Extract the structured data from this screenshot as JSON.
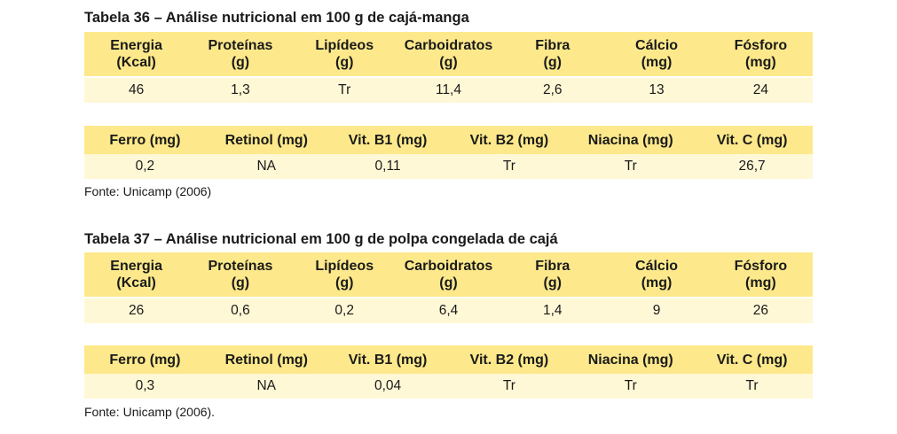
{
  "tables": [
    {
      "title": "Tabela 36 – Análise nutricional em 100 g de cajá-manga",
      "row1_headers": [
        [
          "Energia",
          "(Kcal)"
        ],
        [
          "Proteínas",
          "(g)"
        ],
        [
          "Lipídeos",
          "(g)"
        ],
        [
          "Carboidratos",
          "(g)"
        ],
        [
          "Fibra",
          "(g)"
        ],
        [
          "Cálcio",
          "(mg)"
        ],
        [
          "Fósforo",
          "(mg)"
        ]
      ],
      "row1_values": [
        "46",
        "1,3",
        "Tr",
        "11,4",
        "2,6",
        "13",
        "24"
      ],
      "row2_headers": [
        "Ferro (mg)",
        "Retinol (mg)",
        "Vit. B1 (mg)",
        "Vit. B2 (mg)",
        "Niacina (mg)",
        "Vit. C (mg)"
      ],
      "row2_values": [
        "0,2",
        "NA",
        "0,11",
        "Tr",
        "Tr",
        "26,7"
      ],
      "source": "Fonte: Unicamp (2006)"
    },
    {
      "title": "Tabela 37 – Análise nutricional em 100 g de polpa congelada de cajá",
      "row1_headers": [
        [
          "Energia",
          "(Kcal)"
        ],
        [
          "Proteínas",
          "(g)"
        ],
        [
          "Lipídeos",
          "(g)"
        ],
        [
          "Carboidratos",
          "(g)"
        ],
        [
          "Fibra",
          "(g)"
        ],
        [
          "Cálcio",
          "(mg)"
        ],
        [
          "Fósforo",
          "(mg)"
        ]
      ],
      "row1_values": [
        "26",
        "0,6",
        "0,2",
        "6,4",
        "1,4",
        "9",
        "26"
      ],
      "row2_headers": [
        "Ferro (mg)",
        "Retinol (mg)",
        "Vit. B1 (mg)",
        "Vit. B2 (mg)",
        "Niacina (mg)",
        "Vit. C (mg)"
      ],
      "row2_values": [
        "0,3",
        "NA",
        "0,04",
        "Tr",
        "Tr",
        "Tr"
      ],
      "source": "Fonte: Unicamp (2006)."
    }
  ],
  "colors": {
    "header_bg": "#fde98b",
    "value_bg": "#fff8d6"
  }
}
